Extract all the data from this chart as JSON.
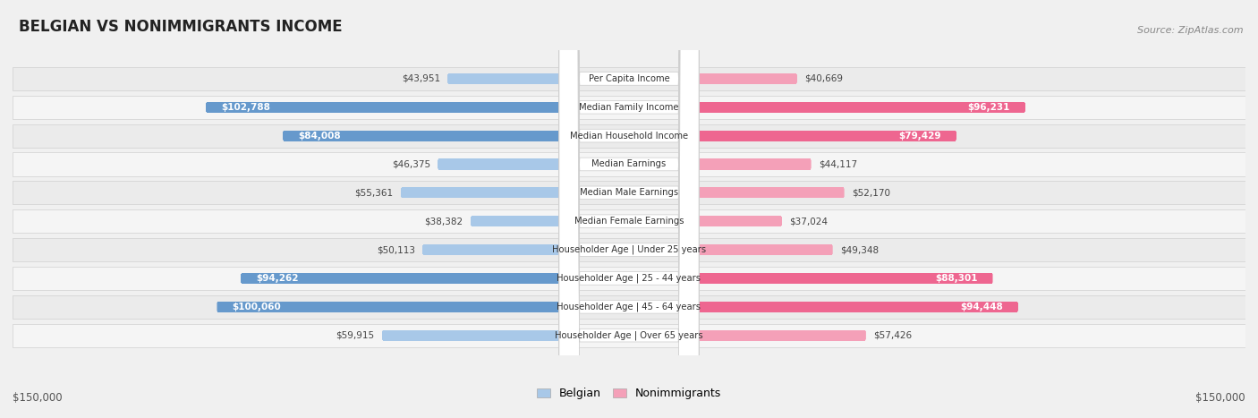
{
  "title": "BELGIAN VS NONIMMIGRANTS INCOME",
  "source": "Source: ZipAtlas.com",
  "categories": [
    "Per Capita Income",
    "Median Family Income",
    "Median Household Income",
    "Median Earnings",
    "Median Male Earnings",
    "Median Female Earnings",
    "Householder Age | Under 25 years",
    "Householder Age | 25 - 44 years",
    "Householder Age | 45 - 64 years",
    "Householder Age | Over 65 years"
  ],
  "belgian_values": [
    43951,
    102788,
    84008,
    46375,
    55361,
    38382,
    50113,
    94262,
    100060,
    59915
  ],
  "nonimmigrant_values": [
    40669,
    96231,
    79429,
    44117,
    52170,
    37024,
    49348,
    88301,
    94448,
    57426
  ],
  "max_value": 150000,
  "belgian_color_light": "#a8c8e8",
  "belgian_color_dark": "#6699cc",
  "nonimmigrant_color_light": "#f4a0b8",
  "nonimmigrant_color_dark": "#ee6690",
  "row_bg_odd": "#efefef",
  "row_bg_even": "#f8f8f8",
  "belgian_label_inside": [
    false,
    true,
    true,
    false,
    false,
    false,
    false,
    true,
    true,
    false
  ],
  "nonimmigrant_label_inside": [
    false,
    true,
    true,
    false,
    false,
    false,
    false,
    true,
    true,
    false
  ]
}
